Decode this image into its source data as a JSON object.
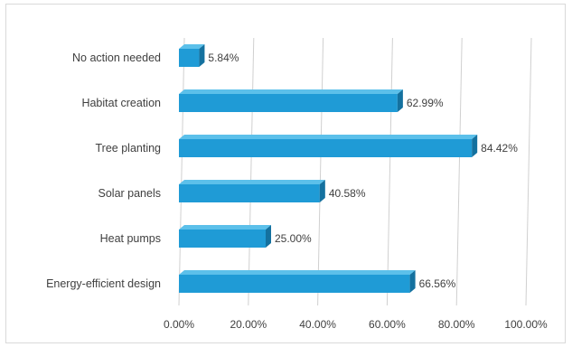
{
  "chart_data": {
    "type": "bar",
    "orientation": "horizontal",
    "style": "3d",
    "categories": [
      "No action needed",
      "Habitat creation",
      "Tree planting",
      "Solar panels",
      "Heat pumps",
      "Energy-efficient design"
    ],
    "values": [
      5.84,
      62.99,
      84.42,
      40.58,
      25.0,
      66.56
    ],
    "value_labels": [
      "5.84%",
      "62.99%",
      "84.42%",
      "40.58%",
      "25.00%",
      "66.56%"
    ],
    "xlim": [
      0,
      100
    ],
    "x_ticks": [
      0,
      20,
      40,
      60,
      80,
      100
    ],
    "x_tick_labels": [
      "0.00%",
      "20.00%",
      "40.00%",
      "60.00%",
      "80.00%",
      "100.00%"
    ],
    "title": "",
    "xlabel": "",
    "ylabel": "",
    "grid": true,
    "legend": "none",
    "colors": {
      "bar_front": "#1f9bd6",
      "bar_top": "#5cc0ea",
      "bar_side": "#14719f",
      "grid": "#d0d0d0",
      "text": "#404040"
    }
  }
}
